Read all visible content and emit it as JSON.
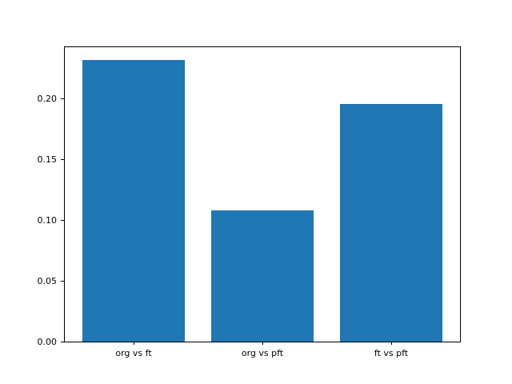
{
  "chart_data": {
    "type": "bar",
    "categories": [
      "org vs ft",
      "org vs pft",
      "ft vs pft"
    ],
    "values": [
      0.232,
      0.108,
      0.196
    ],
    "yticks": [
      0.0,
      0.05,
      0.1,
      0.15,
      0.2
    ],
    "yticklabels": [
      "0.00",
      "0.05",
      "0.10",
      "0.15",
      "0.20"
    ],
    "ylim": [
      0,
      0.2436
    ],
    "bar_width_fraction": 0.8,
    "bar_color": "#1f77b4",
    "axis_color": "#000000",
    "background_color": "#ffffff",
    "grid": false,
    "legend_position": "none"
  }
}
